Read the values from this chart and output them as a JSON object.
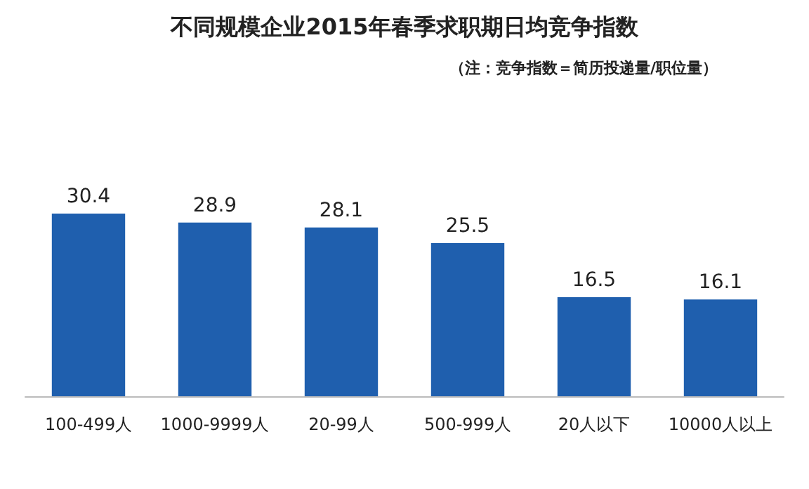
{
  "chart_data": {
    "type": "bar",
    "title": "不同规模企业2015年春季求职期日均竞争指数",
    "subtitle": "（注：竞争指数＝简历投递量/职位量）",
    "categories": [
      "100-499人",
      "1000-9999人",
      "20-99人",
      "500-999人",
      "20人以下",
      "10000人以上"
    ],
    "values": [
      30.4,
      28.9,
      28.1,
      25.5,
      16.5,
      16.1
    ],
    "color": "#1f5fae",
    "data_labels": true
  }
}
